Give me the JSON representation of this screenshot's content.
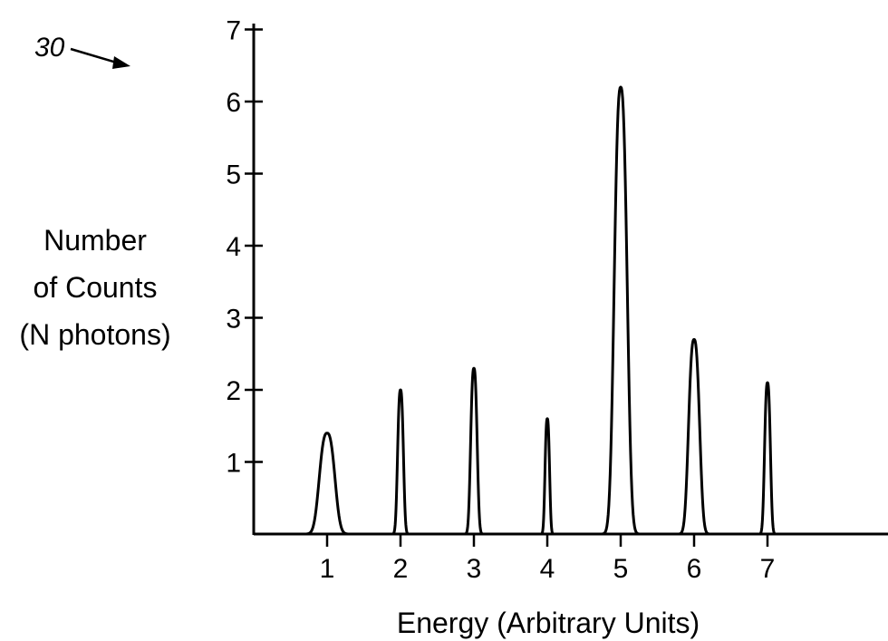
{
  "figure": {
    "reference_numeral": "30"
  },
  "chart_data": {
    "type": "line",
    "title": "",
    "xlabel": "Energy (Arbitrary Units)",
    "ylabel_lines": [
      "Number",
      "of Counts",
      "(N photons)"
    ],
    "x_ticks": [
      1,
      2,
      3,
      4,
      5,
      6,
      7
    ],
    "y_ticks": [
      1,
      2,
      3,
      4,
      5,
      6,
      7
    ],
    "xlim": [
      0,
      8.6
    ],
    "ylim": [
      0,
      7
    ],
    "grid": false,
    "legend": "none",
    "peaks": [
      {
        "x": 1,
        "y": 1.4,
        "width": 0.24
      },
      {
        "x": 2,
        "y": 2.0,
        "width": 0.09
      },
      {
        "x": 3,
        "y": 2.3,
        "width": 0.1
      },
      {
        "x": 4,
        "y": 1.6,
        "width": 0.07
      },
      {
        "x": 5,
        "y": 6.2,
        "width": 0.2
      },
      {
        "x": 6,
        "y": 2.7,
        "width": 0.17
      },
      {
        "x": 7,
        "y": 2.1,
        "width": 0.09
      }
    ],
    "line_color": "#000000"
  }
}
